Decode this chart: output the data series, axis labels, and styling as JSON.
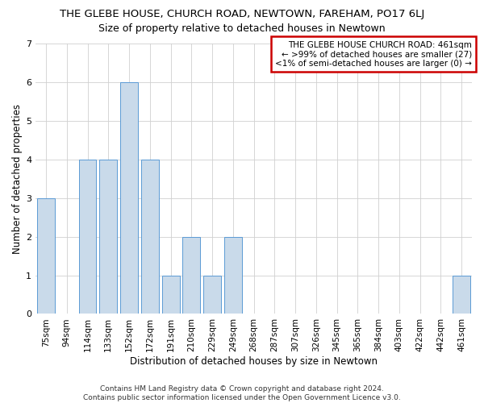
{
  "title": "THE GLEBE HOUSE, CHURCH ROAD, NEWTOWN, FAREHAM, PO17 6LJ",
  "subtitle": "Size of property relative to detached houses in Newtown",
  "xlabel": "Distribution of detached houses by size in Newtown",
  "ylabel": "Number of detached properties",
  "categories": [
    "75sqm",
    "94sqm",
    "114sqm",
    "133sqm",
    "152sqm",
    "172sqm",
    "191sqm",
    "210sqm",
    "229sqm",
    "249sqm",
    "268sqm",
    "287sqm",
    "307sqm",
    "326sqm",
    "345sqm",
    "365sqm",
    "384sqm",
    "403sqm",
    "422sqm",
    "442sqm",
    "461sqm"
  ],
  "values": [
    3,
    0,
    4,
    4,
    6,
    4,
    1,
    2,
    1,
    2,
    0,
    0,
    0,
    0,
    0,
    0,
    0,
    0,
    0,
    0,
    1
  ],
  "bar_color": "#c9daea",
  "bar_edge_color": "#5b9bd5",
  "ylim": [
    0,
    7
  ],
  "yticks": [
    0,
    1,
    2,
    3,
    4,
    5,
    6,
    7
  ],
  "legend_title_line1": "THE GLEBE HOUSE CHURCH ROAD: 461sqm",
  "legend_line2": "← >99% of detached houses are smaller (27)",
  "legend_line3": "<1% of semi-detached houses are larger (0) →",
  "legend_box_color": "#cc0000",
  "footer_line1": "Contains HM Land Registry data © Crown copyright and database right 2024.",
  "footer_line2": "Contains public sector information licensed under the Open Government Licence v3.0.",
  "background_color": "#ffffff",
  "grid_color": "#d0d0d0",
  "title_fontsize": 9.5,
  "subtitle_fontsize": 9,
  "axis_label_fontsize": 8.5,
  "tick_fontsize": 7.5,
  "footer_fontsize": 6.5,
  "legend_fontsize": 7.5
}
